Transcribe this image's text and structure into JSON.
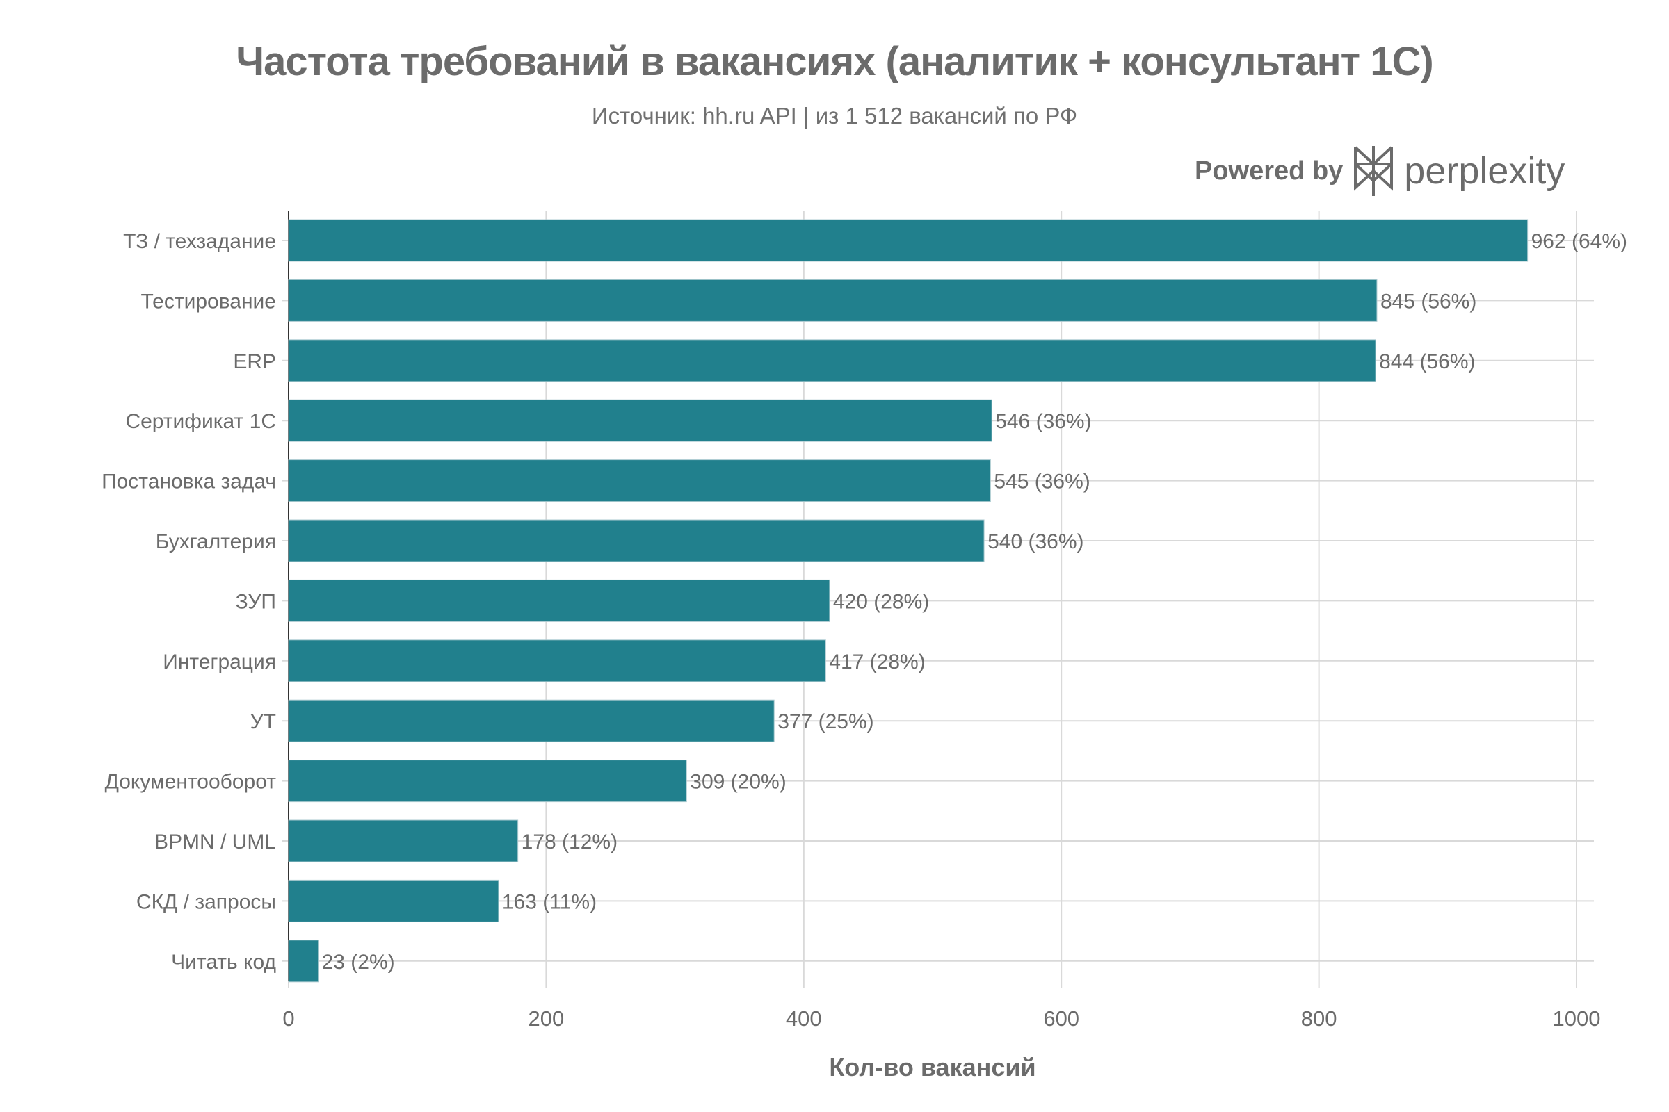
{
  "title": "Частота требований в вакансиях (аналитик + консультант 1С)",
  "subtitle": "Источник: hh.ru API | из 1 512 вакансий по РФ",
  "branding": {
    "prefix": "Powered by",
    "name": "perplexity",
    "icon": "perplexity-logo-icon"
  },
  "chart_data": {
    "type": "bar",
    "orientation": "horizontal",
    "categories": [
      "ТЗ / техзадание",
      "Тестирование",
      "ERP",
      "Сертификат 1С",
      "Постановка задач",
      "Бухгалтерия",
      "ЗУП",
      "Интеграция",
      "УТ",
      "Документооборот",
      "BPMN / UML",
      "СКД / запросы",
      "Читать код"
    ],
    "values": [
      962,
      845,
      844,
      546,
      545,
      540,
      420,
      417,
      377,
      309,
      178,
      163,
      23
    ],
    "data_labels": [
      "962 (64%)",
      "845 (56%)",
      "844 (56%)",
      "546 (36%)",
      "545 (36%)",
      "540 (36%)",
      "420 (28%)",
      "417 (28%)",
      "377 (25%)",
      "309 (20%)",
      "178 (12%)",
      "163 (11%)",
      "23 (2%)"
    ],
    "xlabel": "Кол-во вакансий",
    "ylabel": "",
    "xlim": [
      0,
      1000
    ],
    "xticks": [
      "0",
      "200",
      "400",
      "600",
      "800",
      "1000"
    ],
    "grid": true,
    "bar_color": "#21808d"
  }
}
